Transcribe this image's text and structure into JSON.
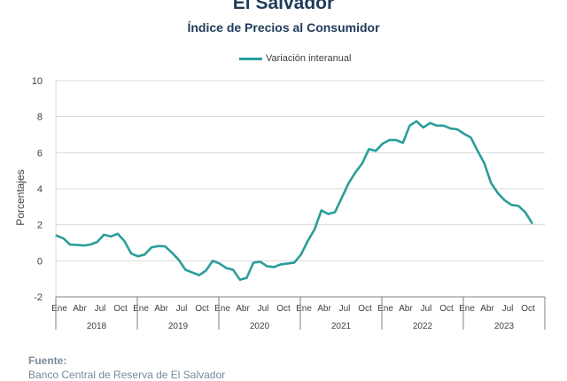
{
  "header": {
    "title": "El Salvador",
    "subtitle": "Índice de Precios al Consumidor"
  },
  "source": {
    "label": "Fuente:",
    "text": "Banco Central de Reserva de El Salvador"
  },
  "colors": {
    "line": "#2a9d9b",
    "grid": "#d9d9d9",
    "axis": "#404040"
  },
  "chart_data": {
    "type": "line",
    "ylabel": "Porcentajes",
    "ylim": [
      -2,
      10
    ],
    "yticks": [
      -2,
      0,
      2,
      4,
      6,
      8,
      10
    ],
    "grid": true,
    "legend_position": "top-center",
    "month_tick_labels": [
      "Ene",
      "Abr",
      "Jul",
      "Oct"
    ],
    "years": [
      "2018",
      "2019",
      "2020",
      "2021",
      "2022",
      "2023"
    ],
    "series": [
      {
        "name": "Variación interanual",
        "x_start": "2018-01",
        "values": [
          1.4,
          1.25,
          0.9,
          0.88,
          0.85,
          0.9,
          1.05,
          1.45,
          1.35,
          1.5,
          1.1,
          0.4,
          0.25,
          0.35,
          0.75,
          0.82,
          0.8,
          0.45,
          0.05,
          -0.5,
          -0.65,
          -0.8,
          -0.55,
          0.0,
          -0.15,
          -0.4,
          -0.5,
          -1.05,
          -0.95,
          -0.1,
          -0.05,
          -0.3,
          -0.35,
          -0.2,
          -0.15,
          -0.1,
          0.35,
          1.1,
          1.75,
          2.8,
          2.6,
          2.7,
          3.5,
          4.3,
          4.9,
          5.4,
          6.2,
          6.1,
          6.5,
          6.7,
          6.7,
          6.55,
          7.5,
          7.75,
          7.4,
          7.65,
          7.5,
          7.5,
          7.35,
          7.3,
          7.05,
          6.85,
          6.1,
          5.4,
          4.3,
          3.75,
          3.35,
          3.1,
          3.05,
          2.7,
          2.1
        ]
      }
    ]
  }
}
